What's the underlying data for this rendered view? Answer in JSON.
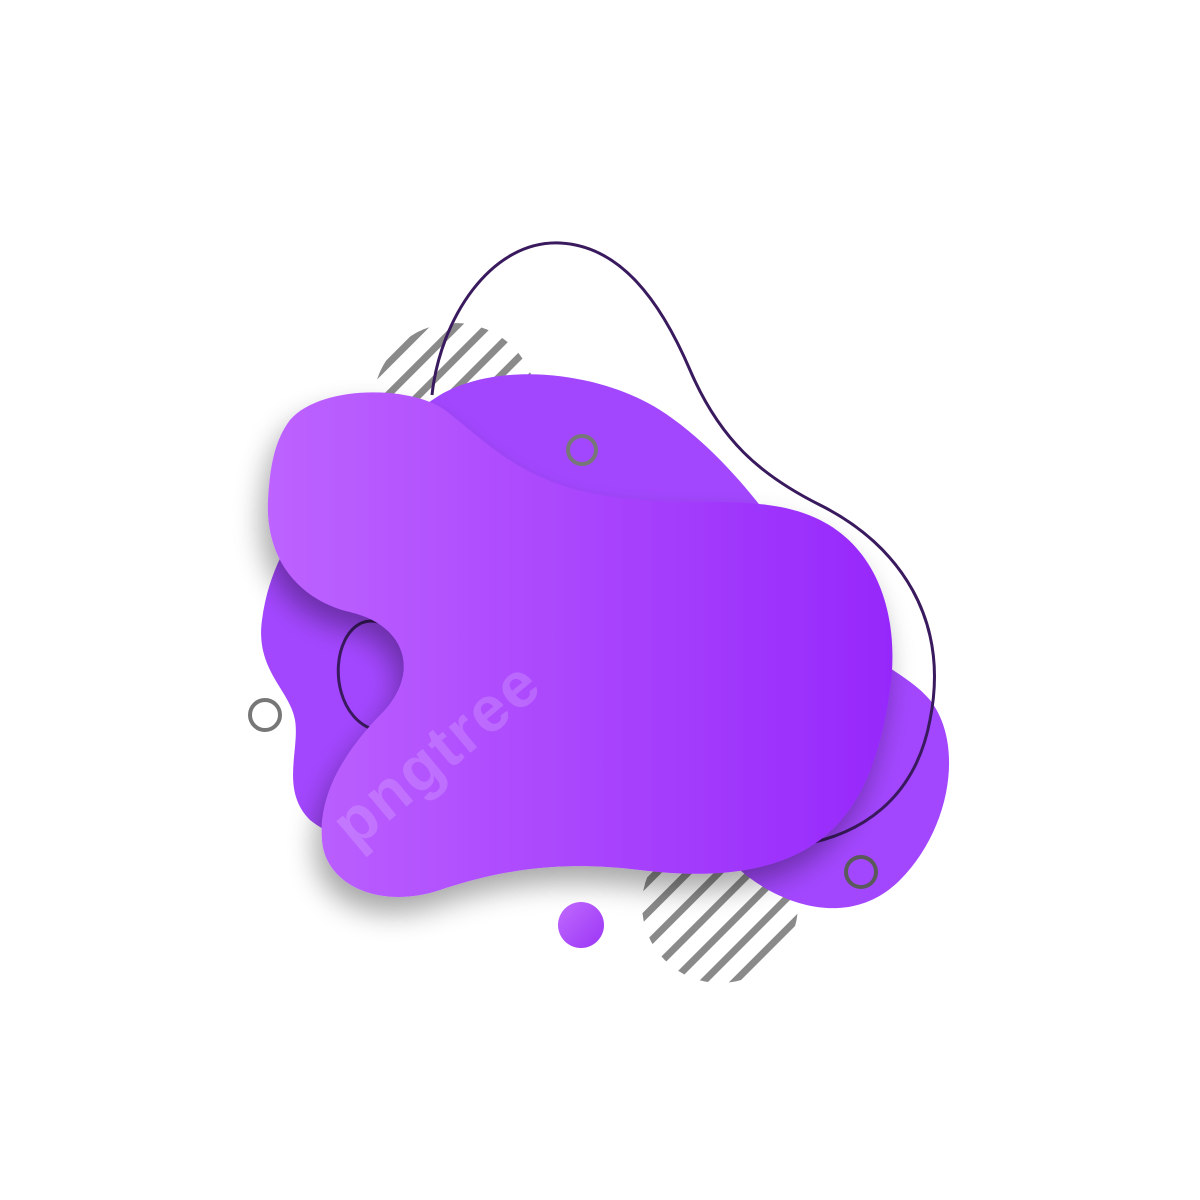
{
  "watermark": {
    "text": "pngtree"
  },
  "colors": {
    "background": "#ffffff",
    "blob_light": "#b85cff",
    "blob_dark": "#9a2eff",
    "back_blob": "#a347ff",
    "outline_stroke": "#3a1a5e",
    "stripe_gray": "#8a8a8a",
    "ring_gray": "#777777",
    "dot_gradient_start": "#b55cff",
    "dot_gradient_end": "#9b35f5"
  },
  "icons": {
    "striped_circle": "striped-circle-icon",
    "ring": "ring-icon",
    "dot": "dot-icon"
  }
}
